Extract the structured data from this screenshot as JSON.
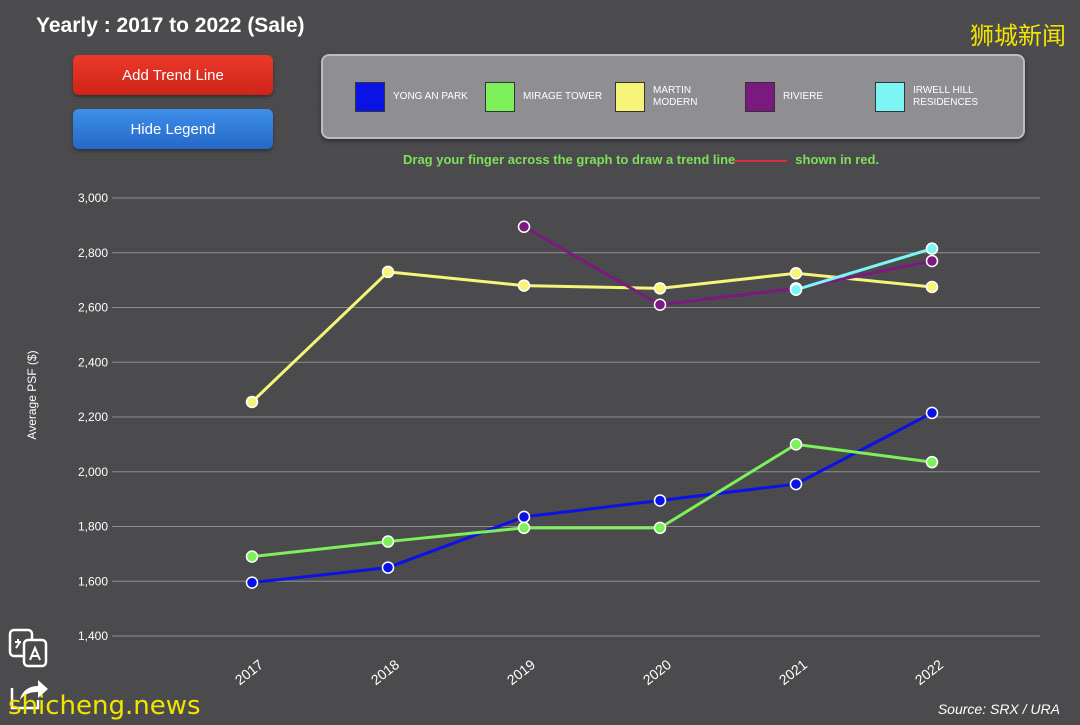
{
  "header": {
    "title": "Yearly : 2017 to 2022 (Sale)",
    "watermark": "狮城新闻"
  },
  "buttons": {
    "add_trend_line": "Add Trend Line",
    "hide_legend": "Hide Legend"
  },
  "instruction": {
    "part1": "Drag your finger across the graph to draw a trend line",
    "part2": "shown in red."
  },
  "footer": {
    "source": "Source: SRX / URA",
    "brand": "shicheng.news"
  },
  "icons": {
    "translate": "translate-icon",
    "share": "share-icon"
  },
  "chart_data": {
    "type": "line",
    "title": "Yearly : 2017 to 2022 (Sale)",
    "xlabel": "",
    "ylabel": "Average PSF ($)",
    "ylim": [
      1400,
      3000
    ],
    "yticks": [
      1400,
      1600,
      1800,
      2000,
      2200,
      2400,
      2600,
      2800,
      3000
    ],
    "ytick_labels": [
      "1,400",
      "1,600",
      "1,800",
      "2,000",
      "2,200",
      "2,400",
      "2,600",
      "2,800",
      "3,000"
    ],
    "categories": [
      "2017",
      "2018",
      "2019",
      "2020",
      "2021",
      "2022"
    ],
    "grid": true,
    "legend_position": "top",
    "series": [
      {
        "name": "YONG AN PARK",
        "color": "#0a12e6",
        "values": [
          1595,
          1650,
          1835,
          1895,
          1955,
          2215
        ]
      },
      {
        "name": "MIRAGE TOWER",
        "color": "#7ef05c",
        "values": [
          1690,
          1745,
          1795,
          1795,
          2100,
          2035
        ]
      },
      {
        "name": "MARTIN MODERN",
        "color": "#f6f57a",
        "values": [
          2255,
          2730,
          2680,
          2670,
          2725,
          2675
        ]
      },
      {
        "name": "RIVIERE",
        "color": "#7a1a7e",
        "values": [
          null,
          null,
          2895,
          2610,
          2670,
          2770
        ]
      },
      {
        "name": "IRWELL HILL RESIDENCES",
        "color": "#7ef5f5",
        "values": [
          null,
          null,
          null,
          null,
          2665,
          2815
        ]
      }
    ]
  }
}
